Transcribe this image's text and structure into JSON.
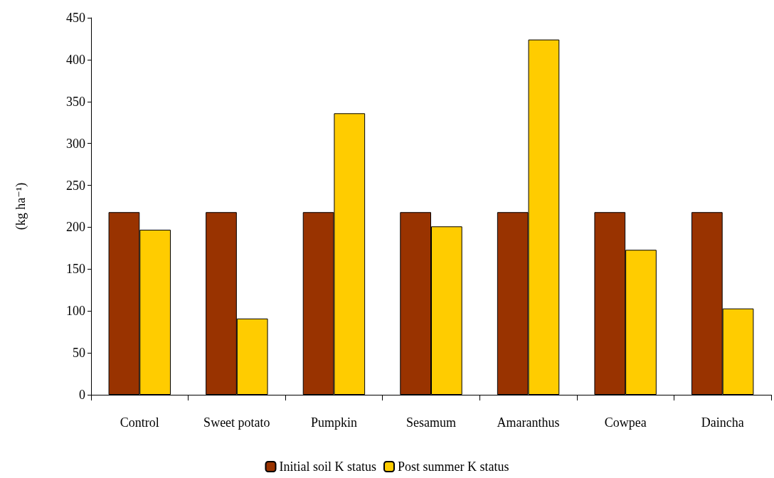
{
  "chart_data": {
    "type": "bar",
    "ylabel": "(kg ha⁻¹)",
    "categories": [
      "Control",
      "Sweet potato",
      "Pumpkin",
      "Sesamum",
      "Amaranthus",
      "Cowpea",
      "Daincha"
    ],
    "series": [
      {
        "name": "Initial soil K status",
        "color": "#993300",
        "values": [
          218,
          218,
          218,
          218,
          218,
          218,
          218
        ]
      },
      {
        "name": "Post summer K status",
        "color": "#ffcc00",
        "values": [
          197,
          91,
          336,
          201,
          424,
          173,
          103
        ]
      }
    ],
    "ylim": [
      0,
      450
    ],
    "yticks": [
      0,
      50,
      100,
      150,
      200,
      250,
      300,
      350,
      400,
      450
    ],
    "grid": false,
    "legend": "bottom"
  }
}
